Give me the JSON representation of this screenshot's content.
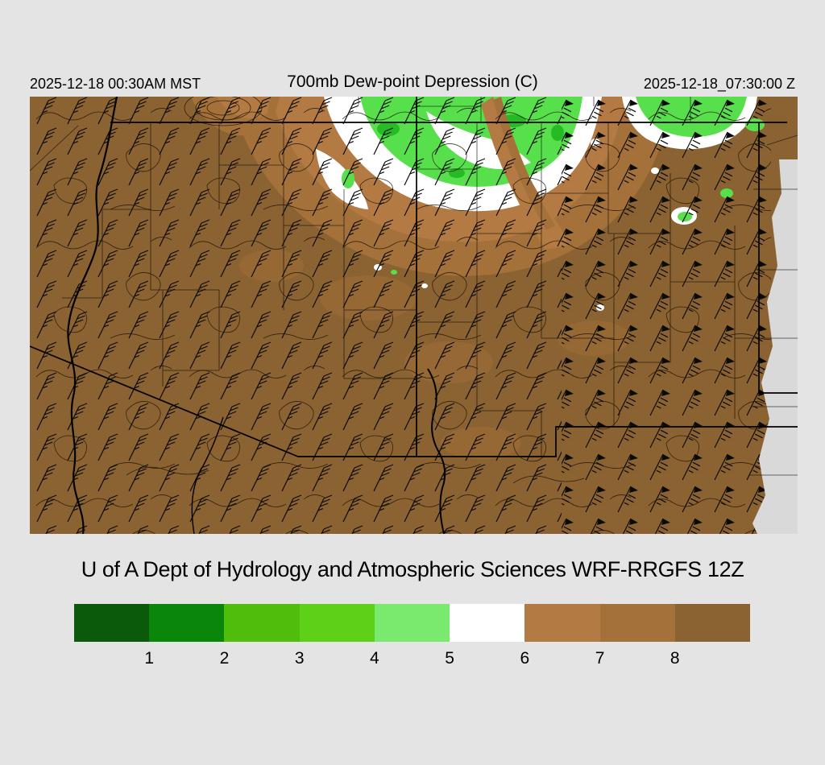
{
  "header": {
    "left_datetime": "2025-12-18 00:30AM MST",
    "title": "700mb Dew-point Depression (C)",
    "right_datetime": "2025-12-18_07:30:00 Z"
  },
  "caption": "U of A Dept of Hydrology and Atmospheric Sciences WRF-RRGFS 12Z",
  "colorbar": {
    "labels": [
      "1",
      "2",
      "3",
      "4",
      "5",
      "6",
      "7",
      "8"
    ],
    "colors": [
      "#0b5a0b",
      "#0a870a",
      "#50bd0c",
      "#5fd018",
      "#79ea6e",
      "#ffffff",
      "#b37b43",
      "#a5713a",
      "#8b6231"
    ]
  },
  "colors": {
    "map_base": "#8b6231",
    "map_brown_mid": "#a5713a",
    "map_tan": "#b37b43",
    "map_white": "#ffffff",
    "map_green": "#57e04c",
    "map_green_dark": "#1eb41e",
    "domain_edge_gray": "#d9d9d9"
  }
}
